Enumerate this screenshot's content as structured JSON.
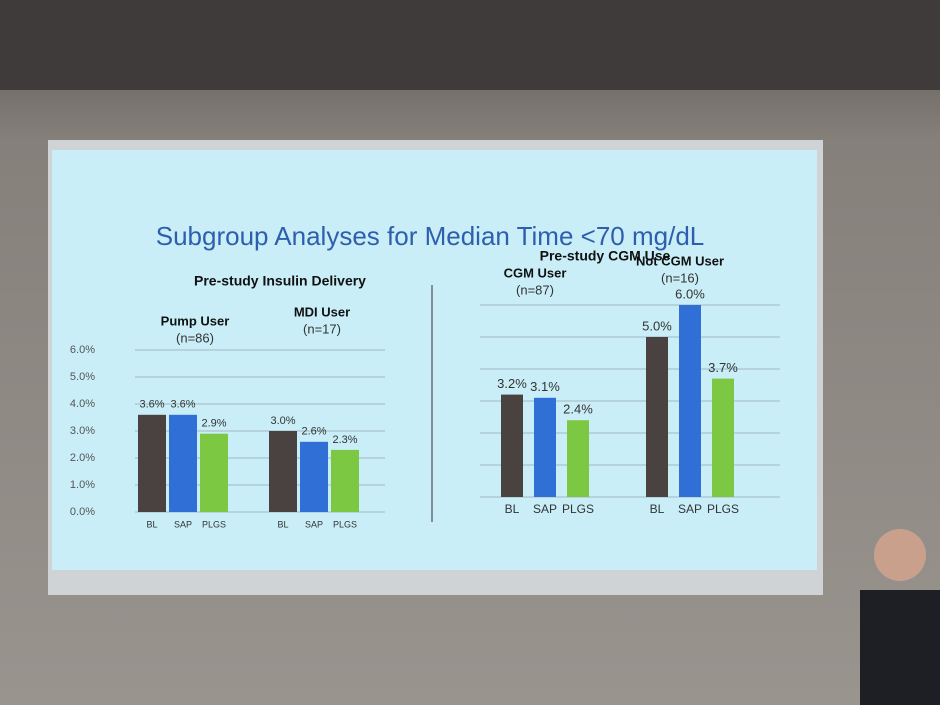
{
  "title": "Subgroup Analyses for Median Time <70 mg/dL",
  "chart_data": [
    {
      "type": "bar",
      "title": "Pre-study Insulin Delivery",
      "ylim": [
        0,
        6
      ],
      "tick_labels": true,
      "grid": true,
      "yticks": [
        {
          "value": 0,
          "label": "0.0%"
        },
        {
          "value": 1,
          "label": "1.0%"
        },
        {
          "value": 2,
          "label": "2.0%"
        },
        {
          "value": 3,
          "label": "3.0%"
        },
        {
          "value": 4,
          "label": "4.0%"
        },
        {
          "value": 5,
          "label": "5.0%"
        },
        {
          "value": 6,
          "label": "6.0%"
        }
      ],
      "colors": [
        "#4a4240",
        "#2f6fd6",
        "#7cc843"
      ],
      "groups": [
        {
          "name": "Pump User",
          "subtitle": "(n=86)",
          "categories": [
            "BL",
            "SAP",
            "PLGS"
          ],
          "values": [
            3.6,
            3.6,
            2.9
          ],
          "value_labels": [
            "3.6%",
            "3.6%",
            "2.9%"
          ]
        },
        {
          "name": "MDI User",
          "subtitle": "(n=17)",
          "categories": [
            "BL",
            "SAP",
            "PLGS"
          ],
          "values": [
            3.0,
            2.6,
            2.3
          ],
          "value_labels": [
            "3.0%",
            "2.6%",
            "2.3%"
          ]
        }
      ]
    },
    {
      "type": "bar",
      "title": "Pre-study CGM Use",
      "ylim": [
        0,
        6
      ],
      "tick_labels": false,
      "grid": true,
      "yticks": [
        0,
        1,
        2,
        3,
        4,
        5,
        6
      ],
      "colors": [
        "#4a4240",
        "#2f6fd6",
        "#7cc843"
      ],
      "groups": [
        {
          "name": "CGM User",
          "subtitle": "(n=87)",
          "categories": [
            "BL",
            "SAP",
            "PLGS"
          ],
          "values": [
            3.2,
            3.1,
            2.4
          ],
          "value_labels": [
            "3.2%",
            "3.1%",
            "2.4%"
          ]
        },
        {
          "name": "Not CGM User",
          "subtitle": "(n=16)",
          "categories": [
            "BL",
            "SAP",
            "PLGS"
          ],
          "values": [
            5.0,
            6.0,
            3.7
          ],
          "value_labels": [
            "5.0%",
            "6.0%",
            "3.7%"
          ]
        }
      ]
    }
  ]
}
